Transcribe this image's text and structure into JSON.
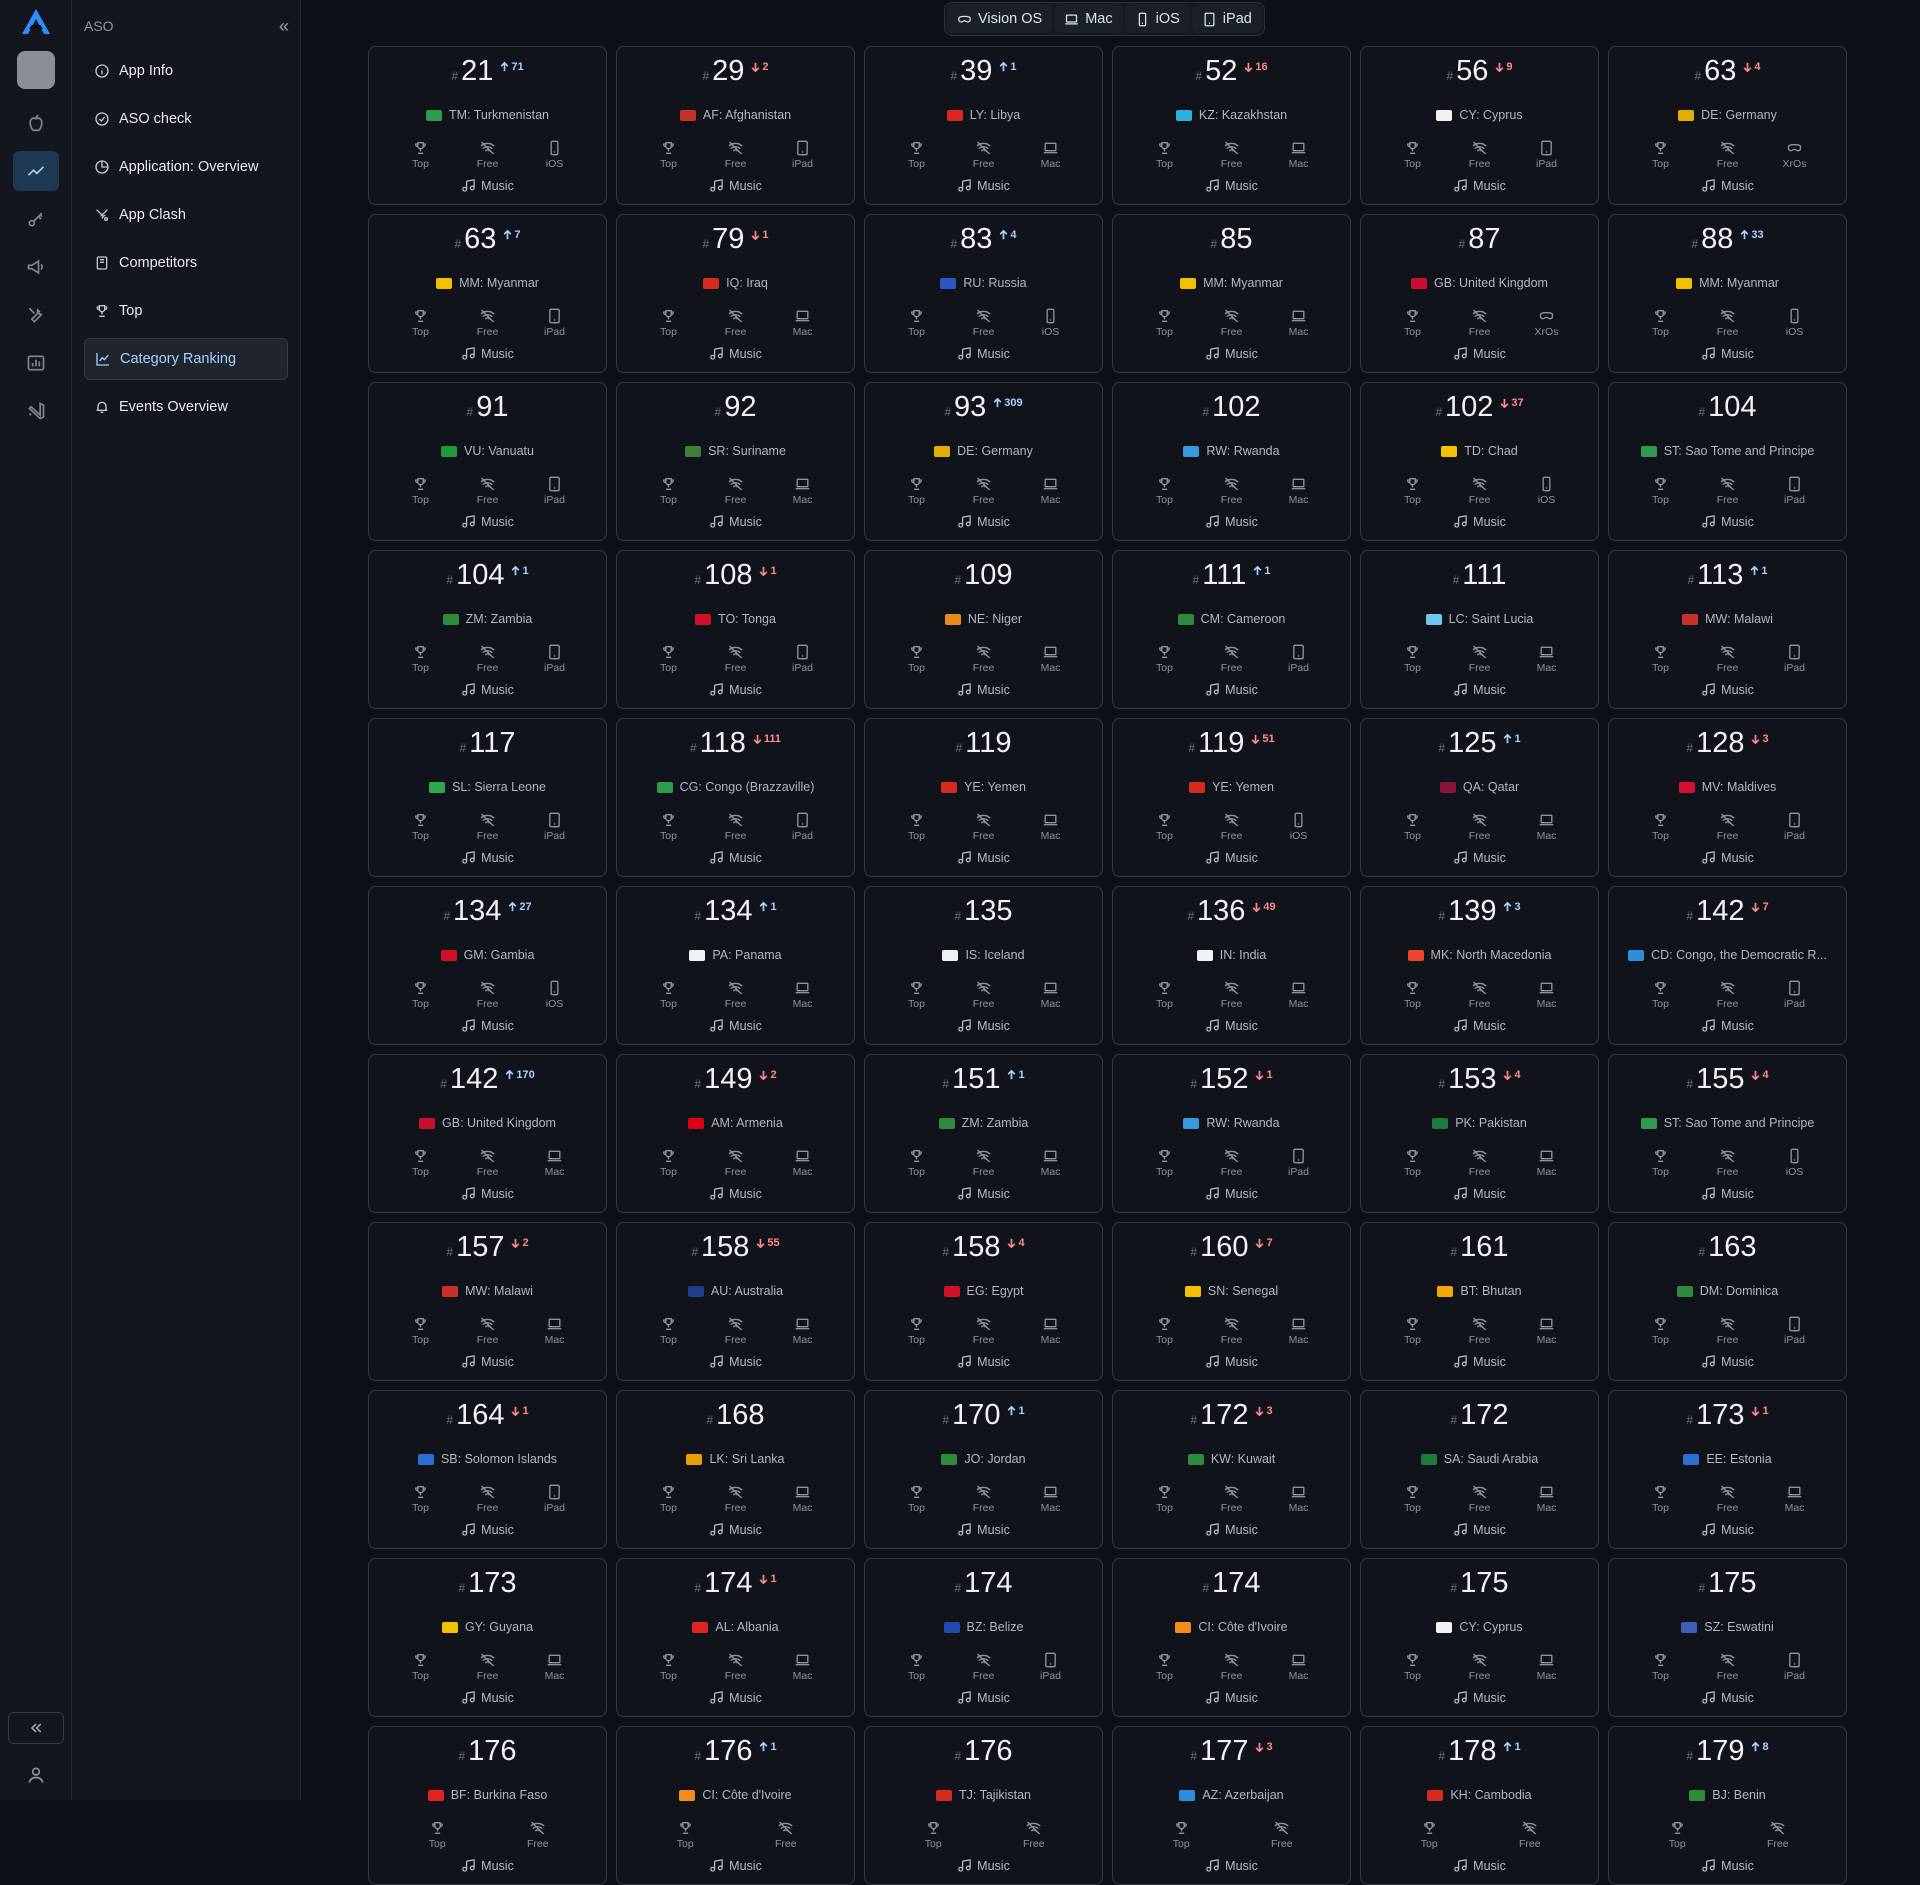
{
  "sidebar": {
    "section": "ASO",
    "items": [
      {
        "label": "App Info",
        "icon": "info-icon"
      },
      {
        "label": "ASO check",
        "icon": "check-circle-icon"
      },
      {
        "label": "Application: Overview",
        "icon": "pie-chart-icon"
      },
      {
        "label": "App Clash",
        "icon": "swords-icon"
      },
      {
        "label": "Competitors",
        "icon": "book-icon"
      },
      {
        "label": "Top",
        "icon": "trophy-icon"
      },
      {
        "label": "Category Ranking",
        "icon": "line-chart-icon",
        "active": true
      },
      {
        "label": "Events Overview",
        "icon": "bell-icon"
      }
    ]
  },
  "platform_tabs": [
    {
      "label": "Vision OS",
      "icon": "visionos-icon"
    },
    {
      "label": "Mac",
      "icon": "laptop-icon"
    },
    {
      "label": "iOS",
      "icon": "phone-icon"
    },
    {
      "label": "iPad",
      "icon": "tablet-icon"
    }
  ],
  "card_labels": {
    "hash": "#",
    "top": "Top",
    "free": "Free",
    "genre": "Music"
  },
  "colors": {
    "accent": "#9fd0ff",
    "up": "#a7d1ff",
    "down": "#ff8a8a"
  },
  "cards": [
    {
      "rank": "21",
      "dir": "up",
      "delta": "71",
      "country": "TM: Turkmenistan",
      "device": "iOS",
      "flag": "#2e9a4e"
    },
    {
      "rank": "29",
      "dir": "down",
      "delta": "2",
      "country": "AF: Afghanistan",
      "device": "iPad",
      "flag": "#c8302c"
    },
    {
      "rank": "39",
      "dir": "up",
      "delta": "1",
      "country": "LY: Libya",
      "device": "Mac",
      "flag": "#e02424"
    },
    {
      "rank": "52",
      "dir": "down",
      "delta": "16",
      "country": "KZ: Kazakhstan",
      "device": "Mac",
      "flag": "#2bb3d9"
    },
    {
      "rank": "56",
      "dir": "down",
      "delta": "9",
      "country": "CY: Cyprus",
      "device": "iPad",
      "flag": "#f2f2f2"
    },
    {
      "rank": "63",
      "dir": "down",
      "delta": "4",
      "country": "DE: Germany",
      "device": "XrOs",
      "flag": "#e2b000"
    },
    {
      "rank": "63",
      "dir": "up",
      "delta": "7",
      "country": "MM: Myanmar",
      "device": "iPad",
      "flag": "#f2c200"
    },
    {
      "rank": "79",
      "dir": "down",
      "delta": "1",
      "country": "IQ: Iraq",
      "device": "Mac",
      "flag": "#d52b1e"
    },
    {
      "rank": "83",
      "dir": "up",
      "delta": "4",
      "country": "RU: Russia",
      "device": "iOS",
      "flag": "#2d56c4"
    },
    {
      "rank": "85",
      "dir": "",
      "delta": "",
      "country": "MM: Myanmar",
      "device": "Mac",
      "flag": "#f2c200"
    },
    {
      "rank": "87",
      "dir": "",
      "delta": "",
      "country": "GB: United Kingdom",
      "device": "XrOs",
      "flag": "#c8102e"
    },
    {
      "rank": "88",
      "dir": "up",
      "delta": "33",
      "country": "MM: Myanmar",
      "device": "iOS",
      "flag": "#f2c200"
    },
    {
      "rank": "91",
      "dir": "",
      "delta": "",
      "country": "VU: Vanuatu",
      "device": "iPad",
      "flag": "#1c9a3c"
    },
    {
      "rank": "92",
      "dir": "",
      "delta": "",
      "country": "SR: Suriname",
      "device": "Mac",
      "flag": "#3d7f3a"
    },
    {
      "rank": "93",
      "dir": "up",
      "delta": "309",
      "country": "DE: Germany",
      "device": "Mac",
      "flag": "#e2b000"
    },
    {
      "rank": "102",
      "dir": "",
      "delta": "",
      "country": "RW: Rwanda",
      "device": "Mac",
      "flag": "#3a9ad9"
    },
    {
      "rank": "102",
      "dir": "down",
      "delta": "37",
      "country": "TD: Chad",
      "device": "iOS",
      "flag": "#f2c200"
    },
    {
      "rank": "104",
      "dir": "",
      "delta": "",
      "country": "ST: Sao Tome and Principe",
      "device": "iPad",
      "flag": "#2e9a4e"
    },
    {
      "rank": "104",
      "dir": "up",
      "delta": "1",
      "country": "ZM: Zambia",
      "device": "iPad",
      "flag": "#2e8b3e"
    },
    {
      "rank": "108",
      "dir": "down",
      "delta": "1",
      "country": "TO: Tonga",
      "device": "iPad",
      "flag": "#d2102a"
    },
    {
      "rank": "109",
      "dir": "",
      "delta": "",
      "country": "NE: Niger",
      "device": "Mac",
      "flag": "#e98a1e"
    },
    {
      "rank": "111",
      "dir": "up",
      "delta": "1",
      "country": "CM: Cameroon",
      "device": "iPad",
      "flag": "#2e8b3e"
    },
    {
      "rank": "111",
      "dir": "",
      "delta": "",
      "country": "LC: Saint Lucia",
      "device": "Mac",
      "flag": "#6cc8f0"
    },
    {
      "rank": "113",
      "dir": "up",
      "delta": "1",
      "country": "MW: Malawi",
      "device": "iPad",
      "flag": "#c8302c"
    },
    {
      "rank": "117",
      "dir": "",
      "delta": "",
      "country": "SL: Sierra Leone",
      "device": "iPad",
      "flag": "#2eaa4e"
    },
    {
      "rank": "118",
      "dir": "down",
      "delta": "111",
      "country": "CG: Congo (Brazzaville)",
      "device": "iPad",
      "flag": "#2e9a4e"
    },
    {
      "rank": "119",
      "dir": "",
      "delta": "",
      "country": "YE: Yemen",
      "device": "Mac",
      "flag": "#d52b1e"
    },
    {
      "rank": "119",
      "dir": "down",
      "delta": "51",
      "country": "YE: Yemen",
      "device": "iOS",
      "flag": "#d52b1e"
    },
    {
      "rank": "125",
      "dir": "up",
      "delta": "1",
      "country": "QA: Qatar",
      "device": "Mac",
      "flag": "#8a1538"
    },
    {
      "rank": "128",
      "dir": "down",
      "delta": "3",
      "country": "MV: Maldives",
      "device": "iPad",
      "flag": "#d21034"
    },
    {
      "rank": "134",
      "dir": "up",
      "delta": "27",
      "country": "GM: Gambia",
      "device": "iOS",
      "flag": "#ce1126"
    },
    {
      "rank": "134",
      "dir": "up",
      "delta": "1",
      "country": "PA: Panama",
      "device": "Mac",
      "flag": "#f2f2f2"
    },
    {
      "rank": "135",
      "dir": "",
      "delta": "",
      "country": "IS: Iceland",
      "device": "Mac",
      "flag": "#f2f2f2"
    },
    {
      "rank": "136",
      "dir": "down",
      "delta": "49",
      "country": "IN: India",
      "device": "Mac",
      "flag": "#f2f2f2"
    },
    {
      "rank": "139",
      "dir": "up",
      "delta": "3",
      "country": "MK: North Macedonia",
      "device": "Mac",
      "flag": "#e8452c"
    },
    {
      "rank": "142",
      "dir": "down",
      "delta": "7",
      "country": "CD: Congo, the Democratic R...",
      "device": "iPad",
      "flag": "#2d8fd9"
    },
    {
      "rank": "142",
      "dir": "up",
      "delta": "170",
      "country": "GB: United Kingdom",
      "device": "Mac",
      "flag": "#c8102e"
    },
    {
      "rank": "149",
      "dir": "down",
      "delta": "2",
      "country": "AM: Armenia",
      "device": "Mac",
      "flag": "#d90012"
    },
    {
      "rank": "151",
      "dir": "up",
      "delta": "1",
      "country": "ZM: Zambia",
      "device": "Mac",
      "flag": "#2e8b3e"
    },
    {
      "rank": "152",
      "dir": "down",
      "delta": "1",
      "country": "RW: Rwanda",
      "device": "iPad",
      "flag": "#3a9ad9"
    },
    {
      "rank": "153",
      "dir": "down",
      "delta": "4",
      "country": "PK: Pakistan",
      "device": "Mac",
      "flag": "#1f7a3a"
    },
    {
      "rank": "155",
      "dir": "down",
      "delta": "4",
      "country": "ST: Sao Tome and Principe",
      "device": "iOS",
      "flag": "#2e9a4e"
    },
    {
      "rank": "157",
      "dir": "down",
      "delta": "2",
      "country": "MW: Malawi",
      "device": "Mac",
      "flag": "#c8302c"
    },
    {
      "rank": "158",
      "dir": "down",
      "delta": "55",
      "country": "AU: Australia",
      "device": "Mac",
      "flag": "#1f3c8a"
    },
    {
      "rank": "158",
      "dir": "down",
      "delta": "4",
      "country": "EG: Egypt",
      "device": "Mac",
      "flag": "#ce1126"
    },
    {
      "rank": "160",
      "dir": "down",
      "delta": "7",
      "country": "SN: Senegal",
      "device": "Mac",
      "flag": "#f2c200"
    },
    {
      "rank": "161",
      "dir": "",
      "delta": "",
      "country": "BT: Bhutan",
      "device": "Mac",
      "flag": "#f2a800"
    },
    {
      "rank": "163",
      "dir": "",
      "delta": "",
      "country": "DM: Dominica",
      "device": "iPad",
      "flag": "#2e8b3e"
    },
    {
      "rank": "164",
      "dir": "down",
      "delta": "1",
      "country": "SB: Solomon Islands",
      "device": "iPad",
      "flag": "#2a6fd0"
    },
    {
      "rank": "168",
      "dir": "",
      "delta": "",
      "country": "LK: Sri Lanka",
      "device": "Mac",
      "flag": "#e8a000"
    },
    {
      "rank": "170",
      "dir": "up",
      "delta": "1",
      "country": "JO: Jordan",
      "device": "Mac",
      "flag": "#2e8b3e"
    },
    {
      "rank": "172",
      "dir": "down",
      "delta": "3",
      "country": "KW: Kuwait",
      "device": "Mac",
      "flag": "#2e8b3e"
    },
    {
      "rank": "172",
      "dir": "",
      "delta": "",
      "country": "SA: Saudi Arabia",
      "device": "Mac",
      "flag": "#1e7a3a"
    },
    {
      "rank": "173",
      "dir": "down",
      "delta": "1",
      "country": "EE: Estonia",
      "device": "Mac",
      "flag": "#2d6fd0"
    },
    {
      "rank": "173",
      "dir": "",
      "delta": "",
      "country": "GY: Guyana",
      "device": "Mac",
      "flag": "#f2c200"
    },
    {
      "rank": "174",
      "dir": "down",
      "delta": "1",
      "country": "AL: Albania",
      "device": "Mac",
      "flag": "#e02424"
    },
    {
      "rank": "174",
      "dir": "",
      "delta": "",
      "country": "BZ: Belize",
      "device": "iPad",
      "flag": "#1f4bb0"
    },
    {
      "rank": "174",
      "dir": "",
      "delta": "",
      "country": "CI: Côte d'Ivoire",
      "device": "Mac",
      "flag": "#f28c1e"
    },
    {
      "rank": "175",
      "dir": "",
      "delta": "",
      "country": "CY: Cyprus",
      "device": "Mac",
      "flag": "#f2f2f2"
    },
    {
      "rank": "175",
      "dir": "",
      "delta": "",
      "country": "SZ: Eswatini",
      "device": "iPad",
      "flag": "#3e5eb9"
    },
    {
      "rank": "176",
      "dir": "",
      "delta": "",
      "country": "BF: Burkina Faso",
      "device": "",
      "flag": "#e02424"
    },
    {
      "rank": "176",
      "dir": "up",
      "delta": "1",
      "country": "CI: Côte d'Ivoire",
      "device": "",
      "flag": "#f28c1e"
    },
    {
      "rank": "176",
      "dir": "",
      "delta": "",
      "country": "TJ: Tajikistan",
      "device": "",
      "flag": "#d52b1e"
    },
    {
      "rank": "177",
      "dir": "down",
      "delta": "3",
      "country": "AZ: Azerbaijan",
      "device": "",
      "flag": "#2d8fd9"
    },
    {
      "rank": "178",
      "dir": "up",
      "delta": "1",
      "country": "KH: Cambodia",
      "device": "",
      "flag": "#d52b1e"
    },
    {
      "rank": "179",
      "dir": "up",
      "delta": "8",
      "country": "BJ: Benin",
      "device": "",
      "flag": "#2e8b3e"
    }
  ]
}
